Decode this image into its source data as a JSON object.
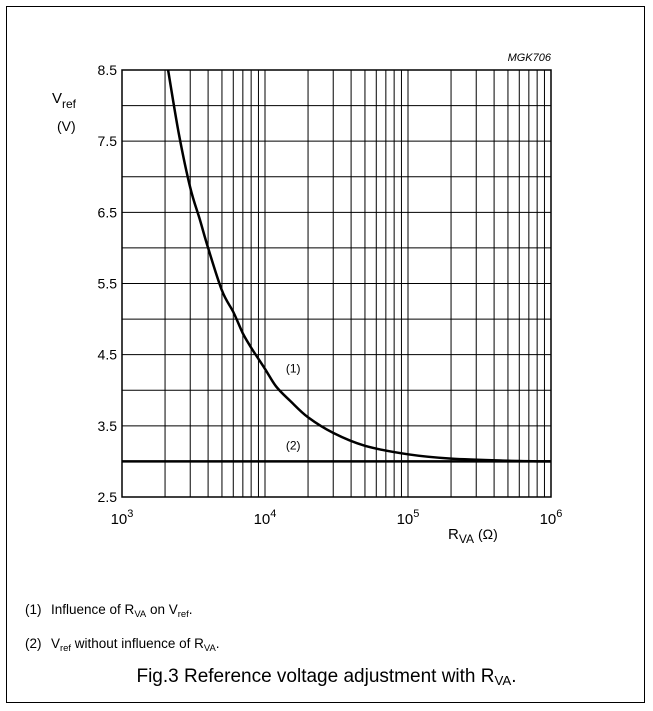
{
  "chart_data": {
    "type": "line",
    "figure_code": "MGK706",
    "ylabel_main": "V",
    "ylabel_sub": "ref",
    "ylabel_unit": "(V)",
    "xlabel_main": "R",
    "xlabel_sub": "VA",
    "xlabel_unit": "(Ω)",
    "x_scale": "log",
    "xlim": [
      1000,
      1000000
    ],
    "ylim": [
      2.5,
      8.5
    ],
    "y_ticks": [
      "2.5",
      "3.5",
      "4.5",
      "5.5",
      "6.5",
      "7.5",
      "8.5"
    ],
    "x_ticks": [
      {
        "base": "10",
        "exp": "3",
        "value": 1000
      },
      {
        "base": "10",
        "exp": "4",
        "value": 10000
      },
      {
        "base": "10",
        "exp": "5",
        "value": 100000
      },
      {
        "base": "10",
        "exp": "6",
        "value": 1000000
      }
    ],
    "grid": true,
    "series": [
      {
        "name": "(1)",
        "label_at": [
          14000,
          4.25
        ],
        "x": [
          2100,
          2500,
          3000,
          3500,
          4000,
          5000,
          6000,
          7000,
          8000,
          10000,
          12000,
          15000,
          20000,
          30000,
          50000,
          100000,
          200000,
          500000,
          1000000
        ],
        "y": [
          8.5,
          7.6,
          6.85,
          6.4,
          6.0,
          5.4,
          5.1,
          4.8,
          4.6,
          4.3,
          4.05,
          3.85,
          3.62,
          3.4,
          3.22,
          3.1,
          3.04,
          3.01,
          3.0
        ]
      },
      {
        "name": "(2)",
        "label_at": [
          14000,
          3.17
        ],
        "x": [
          1000,
          1000000
        ],
        "y": [
          3.0,
          3.0
        ]
      }
    ]
  },
  "notes": [
    {
      "num": "(1)",
      "t1": "Influence of R",
      "s1": "VA",
      "t2": " on V",
      "s2": "ref",
      "t3": "."
    },
    {
      "num": "(2)",
      "t1": "V",
      "s1": "ref",
      "t2": " without influence of R",
      "s2": "VA",
      "t3": "."
    }
  ],
  "caption": {
    "text": "Fig.3  Reference voltage adjustment with R",
    "sub": "VA",
    "end": "."
  }
}
